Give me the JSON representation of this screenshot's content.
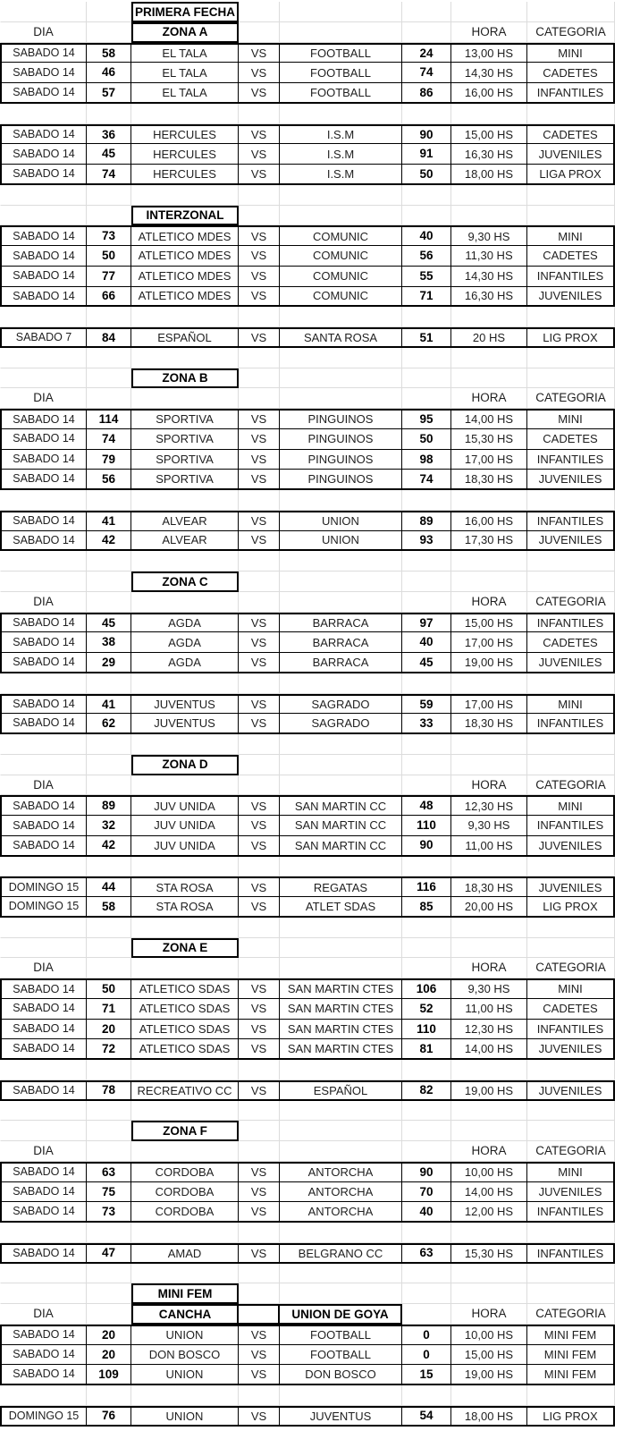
{
  "sheet_title": "PRIMERA FECHA",
  "header_labels": {
    "dia": "DIA",
    "hora": "HORA",
    "categoria": "CATEGORIA"
  },
  "fem_header": {
    "cancha": "CANCHA",
    "union_de_goya": "UNION DE GOYA"
  },
  "columns": [
    "dia",
    "score-home",
    "team-home",
    "vs",
    "team-away",
    "score-away",
    "hora",
    "categoria"
  ],
  "colors": {
    "background": "#ffffff",
    "grid_line": "#dcdcdc",
    "block_border": "#000000",
    "text": "#1f1f1f"
  },
  "blocks": [
    {
      "t": "title",
      "label": "PRIMERA FECHA"
    },
    {
      "t": "header",
      "zone": "ZONA A"
    },
    {
      "t": "m",
      "rows": [
        [
          "SABADO 14",
          "58",
          "EL TALA",
          "VS",
          "FOOTBALL",
          "24",
          "13,00 HS",
          "MINI"
        ],
        [
          "SABADO 14",
          "46",
          "EL TALA",
          "VS",
          "FOOTBALL",
          "74",
          "14,30 HS",
          "CADETES"
        ],
        [
          "SABADO 14",
          "57",
          "EL TALA",
          "VS",
          "FOOTBALL",
          "86",
          "16,00 HS",
          "INFANTILES"
        ]
      ]
    },
    {
      "t": "gap"
    },
    {
      "t": "m",
      "rows": [
        [
          "SABADO 14",
          "36",
          "HERCULES",
          "VS",
          "I.S.M",
          "90",
          "15,00 HS",
          "CADETES"
        ],
        [
          "SABADO 14",
          "45",
          "HERCULES",
          "VS",
          "I.S.M",
          "91",
          "16,30 HS",
          "JUVENILES"
        ],
        [
          "SABADO 14",
          "74",
          "HERCULES",
          "VS",
          "I.S.M",
          "50",
          "18,00 HS",
          "LIGA PROX"
        ]
      ]
    },
    {
      "t": "gap"
    },
    {
      "t": "title",
      "label": "INTERZONAL"
    },
    {
      "t": "m",
      "rows": [
        [
          "SABADO 14",
          "73",
          "ATLETICO MDES",
          "VS",
          "COMUNIC",
          "40",
          "9,30 HS",
          "MINI"
        ],
        [
          "SABADO 14",
          "50",
          "ATLETICO MDES",
          "VS",
          "COMUNIC",
          "56",
          "11,30 HS",
          "CADETES"
        ],
        [
          "SABADO 14",
          "77",
          "ATLETICO MDES",
          "VS",
          "COMUNIC",
          "55",
          "14,30 HS",
          "INFANTILES"
        ],
        [
          "SABADO 14",
          "66",
          "ATLETICO MDES",
          "VS",
          "COMUNIC",
          "71",
          "16,30 HS",
          "JUVENILES"
        ]
      ]
    },
    {
      "t": "gap"
    },
    {
      "t": "m",
      "rows": [
        [
          "SABADO 7",
          "84",
          "ESPAÑOL",
          "VS",
          "SANTA ROSA",
          "51",
          "20 HS",
          "LIG PROX"
        ]
      ]
    },
    {
      "t": "gap"
    },
    {
      "t": "title",
      "label": "ZONA B"
    },
    {
      "t": "header"
    },
    {
      "t": "m",
      "rows": [
        [
          "SABADO 14",
          "114",
          "SPORTIVA",
          "VS",
          "PINGUINOS",
          "95",
          "14,00 HS",
          "MINI"
        ],
        [
          "SABADO 14",
          "74",
          "SPORTIVA",
          "VS",
          "PINGUINOS",
          "50",
          "15,30 HS",
          "CADETES"
        ],
        [
          "SABADO 14",
          "79",
          "SPORTIVA",
          "VS",
          "PINGUINOS",
          "98",
          "17,00 HS",
          "INFANTILES"
        ],
        [
          "SABADO 14",
          "56",
          "SPORTIVA",
          "VS",
          "PINGUINOS",
          "74",
          "18,30 HS",
          "JUVENILES"
        ]
      ]
    },
    {
      "t": "gap"
    },
    {
      "t": "m",
      "rows": [
        [
          "SABADO 14",
          "41",
          "ALVEAR",
          "VS",
          "UNION",
          "89",
          "16,00 HS",
          "INFANTILES"
        ],
        [
          "SABADO 14",
          "42",
          "ALVEAR",
          "VS",
          "UNION",
          "93",
          "17,30 HS",
          "JUVENILES"
        ]
      ]
    },
    {
      "t": "gap"
    },
    {
      "t": "title",
      "label": "ZONA C"
    },
    {
      "t": "header"
    },
    {
      "t": "m",
      "rows": [
        [
          "SABADO 14",
          "45",
          "AGDA",
          "VS",
          "BARRACA",
          "97",
          "15,00 HS",
          "INFANTILES"
        ],
        [
          "SABADO 14",
          "38",
          "AGDA",
          "VS",
          "BARRACA",
          "40",
          "17,00 HS",
          "CADETES"
        ],
        [
          "SABADO 14",
          "29",
          "AGDA",
          "VS",
          "BARRACA",
          "45",
          "19,00 HS",
          "JUVENILES"
        ]
      ]
    },
    {
      "t": "gap"
    },
    {
      "t": "m",
      "rows": [
        [
          "SABADO 14",
          "41",
          "JUVENTUS",
          "VS",
          "SAGRADO",
          "59",
          "17,00 HS",
          "MINI"
        ],
        [
          "SABADO 14",
          "62",
          "JUVENTUS",
          "VS",
          "SAGRADO",
          "33",
          "18,30 HS",
          "INFANTILES"
        ]
      ]
    },
    {
      "t": "gap"
    },
    {
      "t": "title",
      "label": "ZONA D"
    },
    {
      "t": "header"
    },
    {
      "t": "m",
      "rows": [
        [
          "SABADO 14",
          "89",
          "JUV UNIDA",
          "VS",
          "SAN MARTIN CC",
          "48",
          "12,30 HS",
          "MINI"
        ],
        [
          "SABADO 14",
          "32",
          "JUV UNIDA",
          "VS",
          "SAN MARTIN CC",
          "110",
          "9,30 HS",
          "INFANTILES"
        ],
        [
          "SABADO 14",
          "42",
          "JUV UNIDA",
          "VS",
          "SAN MARTIN CC",
          "90",
          "11,00 HS",
          "JUVENILES"
        ]
      ]
    },
    {
      "t": "gap"
    },
    {
      "t": "m",
      "rows": [
        [
          "DOMINGO 15",
          "44",
          "STA ROSA",
          "VS",
          "REGATAS",
          "116",
          "18,30 HS",
          "JUVENILES"
        ],
        [
          "DOMINGO 15",
          "58",
          "STA ROSA",
          "VS",
          "ATLET SDAS",
          "85",
          "20,00 HS",
          "LIG PROX"
        ]
      ]
    },
    {
      "t": "gap"
    },
    {
      "t": "title",
      "label": "ZONA E"
    },
    {
      "t": "header"
    },
    {
      "t": "m",
      "rows": [
        [
          "SABADO 14",
          "50",
          "ATLETICO SDAS",
          "VS",
          "SAN MARTIN CTES",
          "106",
          "9,30 HS",
          "MINI"
        ],
        [
          "SABADO 14",
          "71",
          "ATLETICO SDAS",
          "VS",
          "SAN MARTIN CTES",
          "52",
          "11,00 HS",
          "CADETES"
        ],
        [
          "SABADO 14",
          "20",
          "ATLETICO SDAS",
          "VS",
          "SAN MARTIN CTES",
          "110",
          "12,30 HS",
          "INFANTILES"
        ],
        [
          "SABADO 14",
          "72",
          "ATLETICO SDAS",
          "VS",
          "SAN MARTIN CTES",
          "81",
          "14,00 HS",
          "JUVENILES"
        ]
      ]
    },
    {
      "t": "gap"
    },
    {
      "t": "m",
      "rows": [
        [
          "SABADO 14",
          "78",
          "RECREATIVO CC",
          "VS",
          "ESPAÑOL",
          "82",
          "19,00 HS",
          "JUVENILES"
        ]
      ]
    },
    {
      "t": "gap"
    },
    {
      "t": "title",
      "label": "ZONA F"
    },
    {
      "t": "header"
    },
    {
      "t": "m",
      "rows": [
        [
          "SABADO 14",
          "63",
          "CORDOBA",
          "VS",
          "ANTORCHA",
          "90",
          "10,00 HS",
          "MINI"
        ],
        [
          "SABADO 14",
          "75",
          "CORDOBA",
          "VS",
          "ANTORCHA",
          "70",
          "14,00 HS",
          "JUVENILES"
        ],
        [
          "SABADO 14",
          "73",
          "CORDOBA",
          "VS",
          "ANTORCHA",
          "40",
          "12,00 HS",
          "INFANTILES"
        ]
      ]
    },
    {
      "t": "gap"
    },
    {
      "t": "m",
      "rows": [
        [
          "SABADO 14",
          "47",
          "AMAD",
          "VS",
          "BELGRANO CC",
          "63",
          "15,30 HS",
          "INFANTILES"
        ]
      ]
    },
    {
      "t": "gap"
    },
    {
      "t": "title",
      "label": "MINI FEM"
    },
    {
      "t": "fem_header"
    },
    {
      "t": "m",
      "rows": [
        [
          "SABADO 14",
          "20",
          "UNION",
          "VS",
          "FOOTBALL",
          "0",
          "10,00 HS",
          "MINI FEM"
        ],
        [
          "SABADO 14",
          "20",
          "DON BOSCO",
          "VS",
          "FOOTBALL",
          "0",
          "15,00 HS",
          "MINI FEM"
        ],
        [
          "SABADO 14",
          "109",
          "UNION",
          "VS",
          "DON BOSCO",
          "15",
          "19,00 HS",
          "MINI FEM"
        ]
      ]
    },
    {
      "t": "gap"
    },
    {
      "t": "m",
      "rows": [
        [
          "DOMINGO 15",
          "76",
          "UNION",
          "VS",
          "JUVENTUS",
          "54",
          "18,00 HS",
          "LIG PROX"
        ]
      ]
    }
  ]
}
